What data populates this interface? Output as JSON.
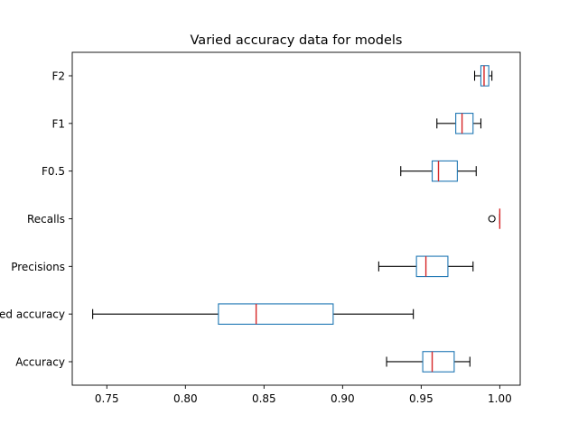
{
  "chart_data": {
    "type": "boxplot",
    "orientation": "horizontal",
    "title": "Varied accuracy data for models",
    "xlabel": "",
    "ylabel": "",
    "xlim": [
      0.728,
      1.013
    ],
    "xticks": [
      "0.75",
      "0.80",
      "0.85",
      "0.90",
      "0.95",
      "1.00"
    ],
    "xtick_values": [
      0.75,
      0.8,
      0.85,
      0.9,
      0.95,
      1.0
    ],
    "grid": false,
    "colors": {
      "box": "#1f77b4",
      "median": "#d62728",
      "whisker": "#000000",
      "outlier": "#000000"
    },
    "categories": [
      "Accuracy",
      "Balanced accuracy",
      "Precisions",
      "Recalls",
      "F0.5",
      "F1",
      "F2"
    ],
    "boxes": [
      {
        "name": "Accuracy",
        "whisker_low": 0.928,
        "q1": 0.951,
        "median": 0.957,
        "q3": 0.971,
        "whisker_high": 0.981,
        "outliers": []
      },
      {
        "name": "Balanced accuracy",
        "whisker_low": 0.741,
        "q1": 0.821,
        "median": 0.845,
        "q3": 0.894,
        "whisker_high": 0.945,
        "outliers": []
      },
      {
        "name": "Precisions",
        "whisker_low": 0.923,
        "q1": 0.947,
        "median": 0.953,
        "q3": 0.967,
        "whisker_high": 0.983,
        "outliers": []
      },
      {
        "name": "Recalls",
        "whisker_low": 1.0,
        "q1": 1.0,
        "median": 1.0,
        "q3": 1.0,
        "whisker_high": 1.0,
        "outliers": [
          0.995
        ]
      },
      {
        "name": "F0.5",
        "whisker_low": 0.937,
        "q1": 0.957,
        "median": 0.961,
        "q3": 0.973,
        "whisker_high": 0.985,
        "outliers": []
      },
      {
        "name": "F1",
        "whisker_low": 0.96,
        "q1": 0.972,
        "median": 0.976,
        "q3": 0.983,
        "whisker_high": 0.988,
        "outliers": []
      },
      {
        "name": "F2",
        "whisker_low": 0.984,
        "q1": 0.988,
        "median": 0.99,
        "q3": 0.993,
        "whisker_high": 0.995,
        "outliers": []
      }
    ]
  }
}
